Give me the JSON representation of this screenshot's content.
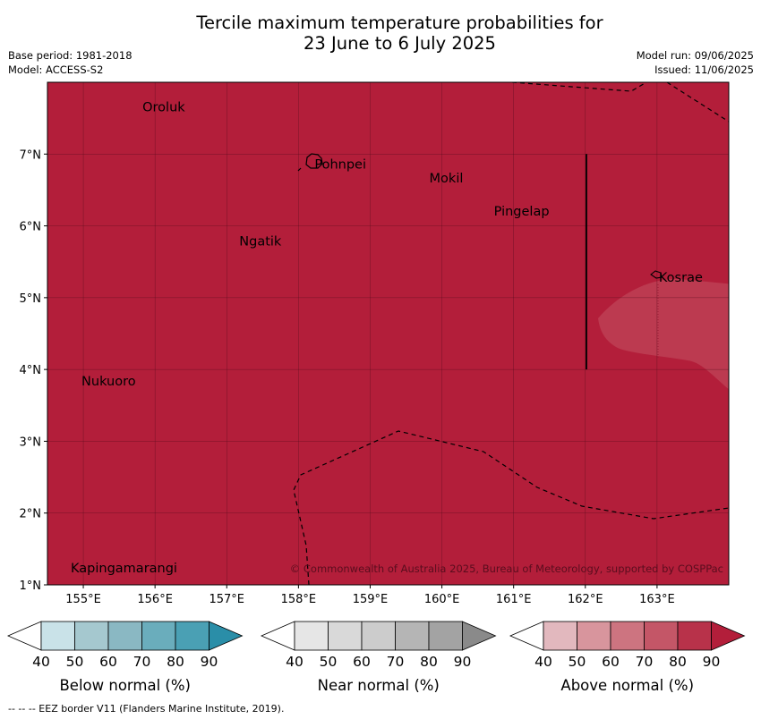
{
  "title": {
    "line1": "Tercile maximum temperature probabilities for",
    "line2": "23 June to 6 July 2025"
  },
  "meta": {
    "base_period": "Base period: 1981-2018",
    "model": "Model: ACCESS-S2",
    "model_run": "Model run: 09/06/2025",
    "issued": "Issued: 11/06/2025"
  },
  "map": {
    "fill_color": "#b31e3a",
    "zone_color": "#bc3a50",
    "lon_range": [
      154.5,
      164
    ],
    "lat_range": [
      1,
      8
    ],
    "lon_ticks": [
      "155°E",
      "156°E",
      "157°E",
      "158°E",
      "159°E",
      "160°E",
      "161°E",
      "162°E",
      "163°E"
    ],
    "lat_ticks": [
      "1°N",
      "2°N",
      "3°N",
      "4°N",
      "5°N",
      "6°N",
      "7°N"
    ],
    "places": [
      {
        "name": "Oroluk",
        "lon": 155.8,
        "lat": 7.67
      },
      {
        "name": "Pohnpei",
        "lon": 158.2,
        "lat": 6.87
      },
      {
        "name": "Mokil",
        "lon": 159.8,
        "lat": 6.68
      },
      {
        "name": "Pingelap",
        "lon": 160.7,
        "lat": 6.22
      },
      {
        "name": "Ngatik",
        "lon": 157.15,
        "lat": 5.8
      },
      {
        "name": "Kosrae",
        "lon": 163.0,
        "lat": 5.3
      },
      {
        "name": "Nukuoro",
        "lon": 154.95,
        "lat": 3.85
      },
      {
        "name": "Kapingamarangi",
        "lon": 154.8,
        "lat": 1.25
      }
    ],
    "copyright": "© Commonwealth of Australia 2025, Bureau of Meteorology, supported by COSPPac"
  },
  "colorbars": [
    {
      "label": "Below normal (%)",
      "colors": [
        "#ffffff",
        "#c9e2e8",
        "#a5c8cf",
        "#8ab8c3",
        "#6aadbc",
        "#4aa0b4",
        "#2a8ea8"
      ],
      "ticks": [
        "40",
        "50",
        "60",
        "70",
        "80",
        "90"
      ]
    },
    {
      "label": "Near normal (%)",
      "colors": [
        "#ffffff",
        "#e6e6e6",
        "#d9d9d9",
        "#cccccc",
        "#b5b5b5",
        "#a3a3a3",
        "#8a8a8a"
      ],
      "ticks": [
        "40",
        "50",
        "60",
        "70",
        "80",
        "90"
      ]
    },
    {
      "label": "Above normal (%)",
      "colors": [
        "#ffffff",
        "#e2b8be",
        "#d8959d",
        "#cd7480",
        "#c45667",
        "#b8324a",
        "#b31e3a"
      ],
      "ticks": [
        "40",
        "50",
        "60",
        "70",
        "80",
        "90"
      ]
    }
  ],
  "footer": "--  --  -- EEZ border V11 (Flanders Marine Institute, 2019)."
}
